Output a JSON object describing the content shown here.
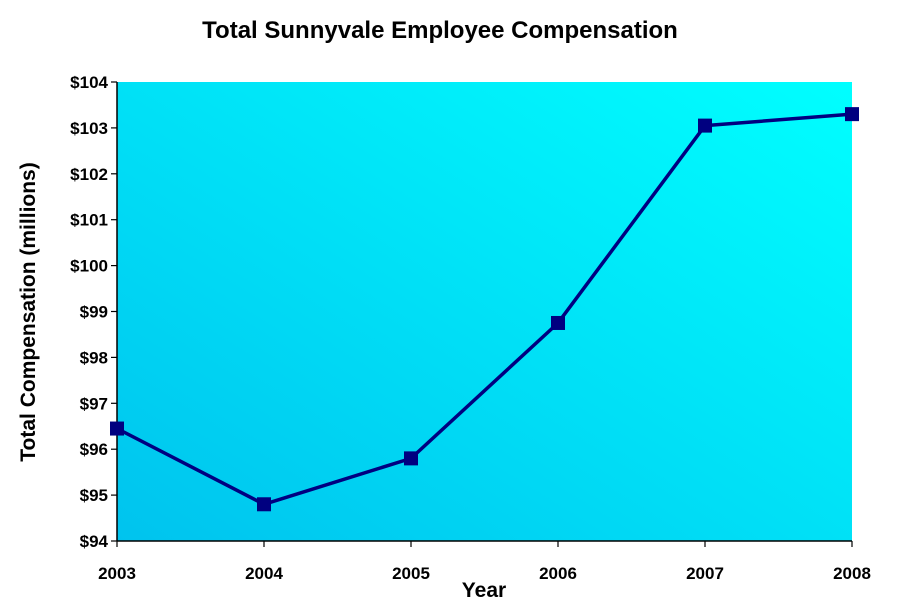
{
  "chart_data": {
    "type": "line",
    "title": "Total Sunnyvale Employee Compensation",
    "xlabel": "Year",
    "ylabel": "Total Compensation (millions)",
    "categories": [
      "2003",
      "2004",
      "2005",
      "2006",
      "2007",
      "2008"
    ],
    "series": [
      {
        "values": [
          96.45,
          94.8,
          95.8,
          98.75,
          103.05,
          103.3
        ]
      }
    ],
    "ylim": [
      94,
      104
    ],
    "y_ticks": [
      94,
      95,
      96,
      97,
      98,
      99,
      100,
      101,
      102,
      103,
      104
    ],
    "y_tick_labels": [
      "$94",
      "$95",
      "$96",
      "$97",
      "$98",
      "$99",
      "$100",
      "$101",
      "$102",
      "$103",
      "$104"
    ],
    "grid": false,
    "legend": "none",
    "colors": {
      "line": "#000080",
      "marker": "#000080",
      "plot_bg_start": "#00ffff",
      "plot_bg_end": "#00c3ee"
    }
  }
}
